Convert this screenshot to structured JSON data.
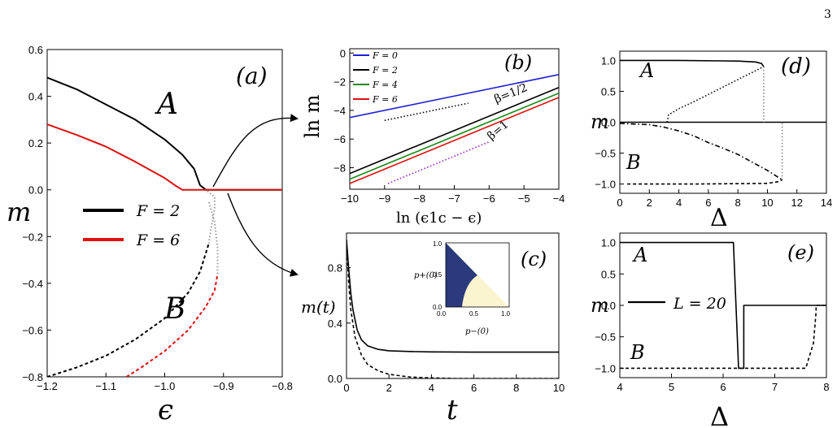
{
  "page_number": "3",
  "colors": {
    "black": "#000000",
    "red": "#e01010",
    "blue": "#1f1fd8",
    "green": "#1a8a1a",
    "purple": "#9a1ad0",
    "grey": "#9a9a9a",
    "inset_dark": "#2b3a7c",
    "inset_light": "#fbf5cf"
  },
  "chart_data": [
    {
      "id": "a",
      "type": "line",
      "panel_label": "(a)",
      "ylabel": "m",
      "xlabel": "ϵ",
      "xlim": [
        -1.2,
        -0.8
      ],
      "ylim": [
        -0.8,
        0.6
      ],
      "xticks": [
        "-1.2",
        "-1.1",
        "-1.0",
        "-0.9",
        "-0.8"
      ],
      "yticks": [
        "-0.8",
        "-0.6",
        "-0.4",
        "-0.2",
        "0.0",
        "0.2",
        "0.4",
        "0.6"
      ],
      "annotations": [
        "A",
        "B"
      ],
      "legend": [
        "F = 2",
        "F = 6"
      ],
      "series": [
        {
          "name": "F = 2",
          "branch": "A",
          "style": "solid",
          "color": "#000000",
          "x": [
            -1.2,
            -1.15,
            -1.1,
            -1.05,
            -1.0,
            -0.97,
            -0.95,
            -0.94,
            -0.93,
            -0.92,
            -0.9,
            -0.85,
            -0.8
          ],
          "y": [
            0.48,
            0.43,
            0.365,
            0.3,
            0.215,
            0.15,
            0.09,
            0.02,
            0.0,
            0.0,
            0.0,
            0.0,
            0.0
          ]
        },
        {
          "name": "F = 6",
          "branch": "A",
          "style": "solid",
          "color": "#e01010",
          "x": [
            -1.2,
            -1.15,
            -1.1,
            -1.05,
            -1.0,
            -0.98,
            -0.97,
            -0.9,
            -0.85,
            -0.8
          ],
          "y": [
            0.28,
            0.235,
            0.185,
            0.12,
            0.05,
            0.015,
            0.0,
            0.0,
            0.0,
            0.0
          ]
        },
        {
          "name": "F = 2",
          "branch": "B",
          "style": "dashed",
          "color": "#000000",
          "x": [
            -1.2,
            -1.15,
            -1.1,
            -1.05,
            -1.0,
            -0.96,
            -0.94,
            -0.925
          ],
          "y": [
            -0.8,
            -0.76,
            -0.71,
            -0.64,
            -0.55,
            -0.44,
            -0.35,
            -0.23
          ]
        },
        {
          "name": "F = 6",
          "branch": "B",
          "style": "dashed",
          "color": "#e01010",
          "x": [
            -1.065,
            -1.04,
            -1.0,
            -0.96,
            -0.93,
            -0.915,
            -0.91
          ],
          "y": [
            -0.8,
            -0.76,
            -0.69,
            -0.6,
            -0.5,
            -0.43,
            -0.36
          ]
        },
        {
          "name": "",
          "branch": "unstable",
          "style": "dotted",
          "color": "#9a9a9a",
          "x": [
            -0.925,
            -0.92,
            -0.915,
            -0.915,
            -0.93
          ],
          "y": [
            -0.23,
            -0.15,
            -0.08,
            -0.03,
            0.0
          ]
        },
        {
          "name": "",
          "branch": "unstable",
          "style": "dotted",
          "color": "#9a9a9a",
          "x": [
            -0.91,
            -0.91,
            -0.915,
            -0.925
          ],
          "y": [
            -0.36,
            -0.25,
            -0.14,
            -0.05
          ]
        }
      ]
    },
    {
      "id": "b",
      "type": "line",
      "panel_label": "(b)",
      "ylabel": "ln m",
      "xlabel": "ln (ϵ1c − ϵ)",
      "xlim": [
        -10,
        -4
      ],
      "ylim": [
        -9.5,
        0.3
      ],
      "xticks": [
        "-10",
        "-9",
        "-8",
        "-7",
        "-6",
        "-5",
        "-4"
      ],
      "yticks": [
        "0",
        "-2",
        "-4",
        "-6",
        "-8"
      ],
      "legend": [
        "F = 0",
        "F = 2",
        "F = 4",
        "F = 6"
      ],
      "annotations": [
        "β=1/2",
        "β=1"
      ],
      "series": [
        {
          "name": "F = 0",
          "color": "#1f1fd8",
          "x": [
            -10,
            -4
          ],
          "y": [
            -4.5,
            -1.5
          ]
        },
        {
          "name": "F = 2",
          "color": "#000000",
          "x": [
            -10,
            -4
          ],
          "y": [
            -8.4,
            -2.4
          ]
        },
        {
          "name": "F = 4",
          "color": "#1a8a1a",
          "x": [
            -10,
            -4
          ],
          "y": [
            -8.8,
            -2.8
          ]
        },
        {
          "name": "F = 6",
          "color": "#e01010",
          "x": [
            -10,
            -4
          ],
          "y": [
            -9.1,
            -3.1
          ]
        },
        {
          "name": "",
          "style": "dotted",
          "color": "#000000",
          "x": [
            -9,
            -6.6
          ],
          "y": [
            -4.7,
            -3.5
          ]
        },
        {
          "name": "",
          "style": "dotted",
          "color": "#9a1ad0",
          "x": [
            -8.9,
            -6.0
          ],
          "y": [
            -9.1,
            -6.2
          ]
        }
      ]
    },
    {
      "id": "c",
      "type": "line",
      "panel_label": "(c)",
      "ylabel": "m(t)",
      "xlabel": "t",
      "xlim": [
        0,
        10
      ],
      "ylim": [
        0,
        1.05
      ],
      "xticks": [
        "0",
        "2",
        "4",
        "6",
        "8",
        "10"
      ],
      "yticks": [
        "0.0",
        "0.4",
        "0.8"
      ],
      "series": [
        {
          "name": "",
          "style": "solid",
          "color": "#000000",
          "x": [
            0,
            0.1,
            0.2,
            0.3,
            0.5,
            0.7,
            1.0,
            1.5,
            2.0,
            3.0,
            4.0,
            6.0,
            10.0
          ],
          "y": [
            1.0,
            0.8,
            0.62,
            0.5,
            0.35,
            0.28,
            0.235,
            0.21,
            0.2,
            0.195,
            0.192,
            0.19,
            0.19
          ]
        },
        {
          "name": "",
          "style": "dashed",
          "color": "#000000",
          "x": [
            0,
            0.1,
            0.2,
            0.4,
            0.7,
            1.0,
            1.5,
            2.0,
            3.0,
            4.0,
            5.0,
            10.0
          ],
          "y": [
            1.0,
            0.7,
            0.5,
            0.3,
            0.17,
            0.1,
            0.055,
            0.03,
            0.01,
            0.004,
            0.0,
            0.0
          ]
        }
      ],
      "inset": {
        "xlabel": "p−(0)",
        "ylabel": "p+(0)",
        "xlim": [
          0,
          1
        ],
        "ylim": [
          0,
          1
        ],
        "xticks": [
          "0.0",
          "0.5",
          "1.0"
        ],
        "yticks": [
          "0.0",
          "0.5",
          "1.0"
        ]
      }
    },
    {
      "id": "d",
      "type": "line",
      "panel_label": "(d)",
      "ylabel": "m",
      "xlabel": "Δ",
      "xlim": [
        0,
        14
      ],
      "ylim": [
        -1.15,
        1.15
      ],
      "xticks": [
        "0",
        "2",
        "4",
        "6",
        "8",
        "10",
        "12",
        "14"
      ],
      "yticks": [
        "1.0",
        "0.5",
        "0.0",
        "-0.5",
        "-1.0"
      ],
      "annotations": [
        "A",
        "B"
      ],
      "series": [
        {
          "name": "",
          "branch": "A",
          "style": "solid",
          "color": "#000000",
          "x": [
            0,
            4,
            8,
            9.2,
            9.6,
            9.75
          ],
          "y": [
            1.0,
            1.0,
            0.99,
            0.975,
            0.95,
            0.9
          ]
        },
        {
          "name": "",
          "style": "solid",
          "color": "#000000",
          "x": [
            0,
            14
          ],
          "y": [
            0.0,
            0.0
          ]
        },
        {
          "name": "",
          "style": "dotted",
          "color": "#000000",
          "x": [
            3.2,
            3.3,
            4.0,
            5.0,
            6.0,
            7.0,
            8.0,
            9.0,
            9.75
          ],
          "y": [
            0.0,
            0.12,
            0.22,
            0.33,
            0.45,
            0.57,
            0.69,
            0.81,
            0.9
          ]
        },
        {
          "name": "",
          "style": "dashdot",
          "color": "#000000",
          "x": [
            0,
            2,
            3,
            4,
            5,
            6,
            7,
            8,
            9,
            10,
            10.8,
            11.0
          ],
          "y": [
            -0.02,
            -0.04,
            -0.08,
            -0.14,
            -0.22,
            -0.33,
            -0.42,
            -0.52,
            -0.65,
            -0.78,
            -0.9,
            -0.93
          ]
        },
        {
          "name": "",
          "branch": "B",
          "style": "dashed",
          "color": "#000000",
          "x": [
            0.5,
            5,
            10,
            10.8,
            11.0
          ],
          "y": [
            -1.0,
            -1.0,
            -0.99,
            -0.96,
            -0.93
          ]
        },
        {
          "name": "",
          "style": "dotted",
          "color": "#888888",
          "x": [
            9.75,
            9.75
          ],
          "y": [
            0.9,
            0.0
          ]
        },
        {
          "name": "",
          "style": "dotted",
          "color": "#888888",
          "x": [
            11.0,
            11.0
          ],
          "y": [
            -0.93,
            0.0
          ]
        }
      ]
    },
    {
      "id": "e",
      "type": "line",
      "panel_label": "(e)",
      "ylabel": "m",
      "xlabel": "Δ",
      "xlim": [
        4,
        8
      ],
      "ylim": [
        -1.15,
        1.15
      ],
      "xticks": [
        "4",
        "5",
        "6",
        "7",
        "8"
      ],
      "yticks": [
        "1.0",
        "0.5",
        "0.0",
        "-0.5",
        "-1.0"
      ],
      "annotations": [
        "A",
        "B"
      ],
      "legend": [
        "L = 20"
      ],
      "series": [
        {
          "name": "L = 20",
          "style": "solid",
          "color": "#000000",
          "x": [
            4.0,
            6.2,
            6.2,
            6.3,
            6.3,
            6.4,
            6.4,
            7.8,
            8.0
          ],
          "y": [
            1.0,
            1.0,
            0.98,
            -1.0,
            -1.0,
            -1.0,
            0.0,
            0.0,
            0.0
          ]
        },
        {
          "name": "",
          "style": "dashed",
          "color": "#000000",
          "x": [
            4.0,
            7.6,
            7.75,
            7.8,
            7.8,
            8.0
          ],
          "y": [
            -1.0,
            -1.0,
            -0.6,
            -0.1,
            0.0,
            0.0
          ]
        }
      ]
    }
  ]
}
